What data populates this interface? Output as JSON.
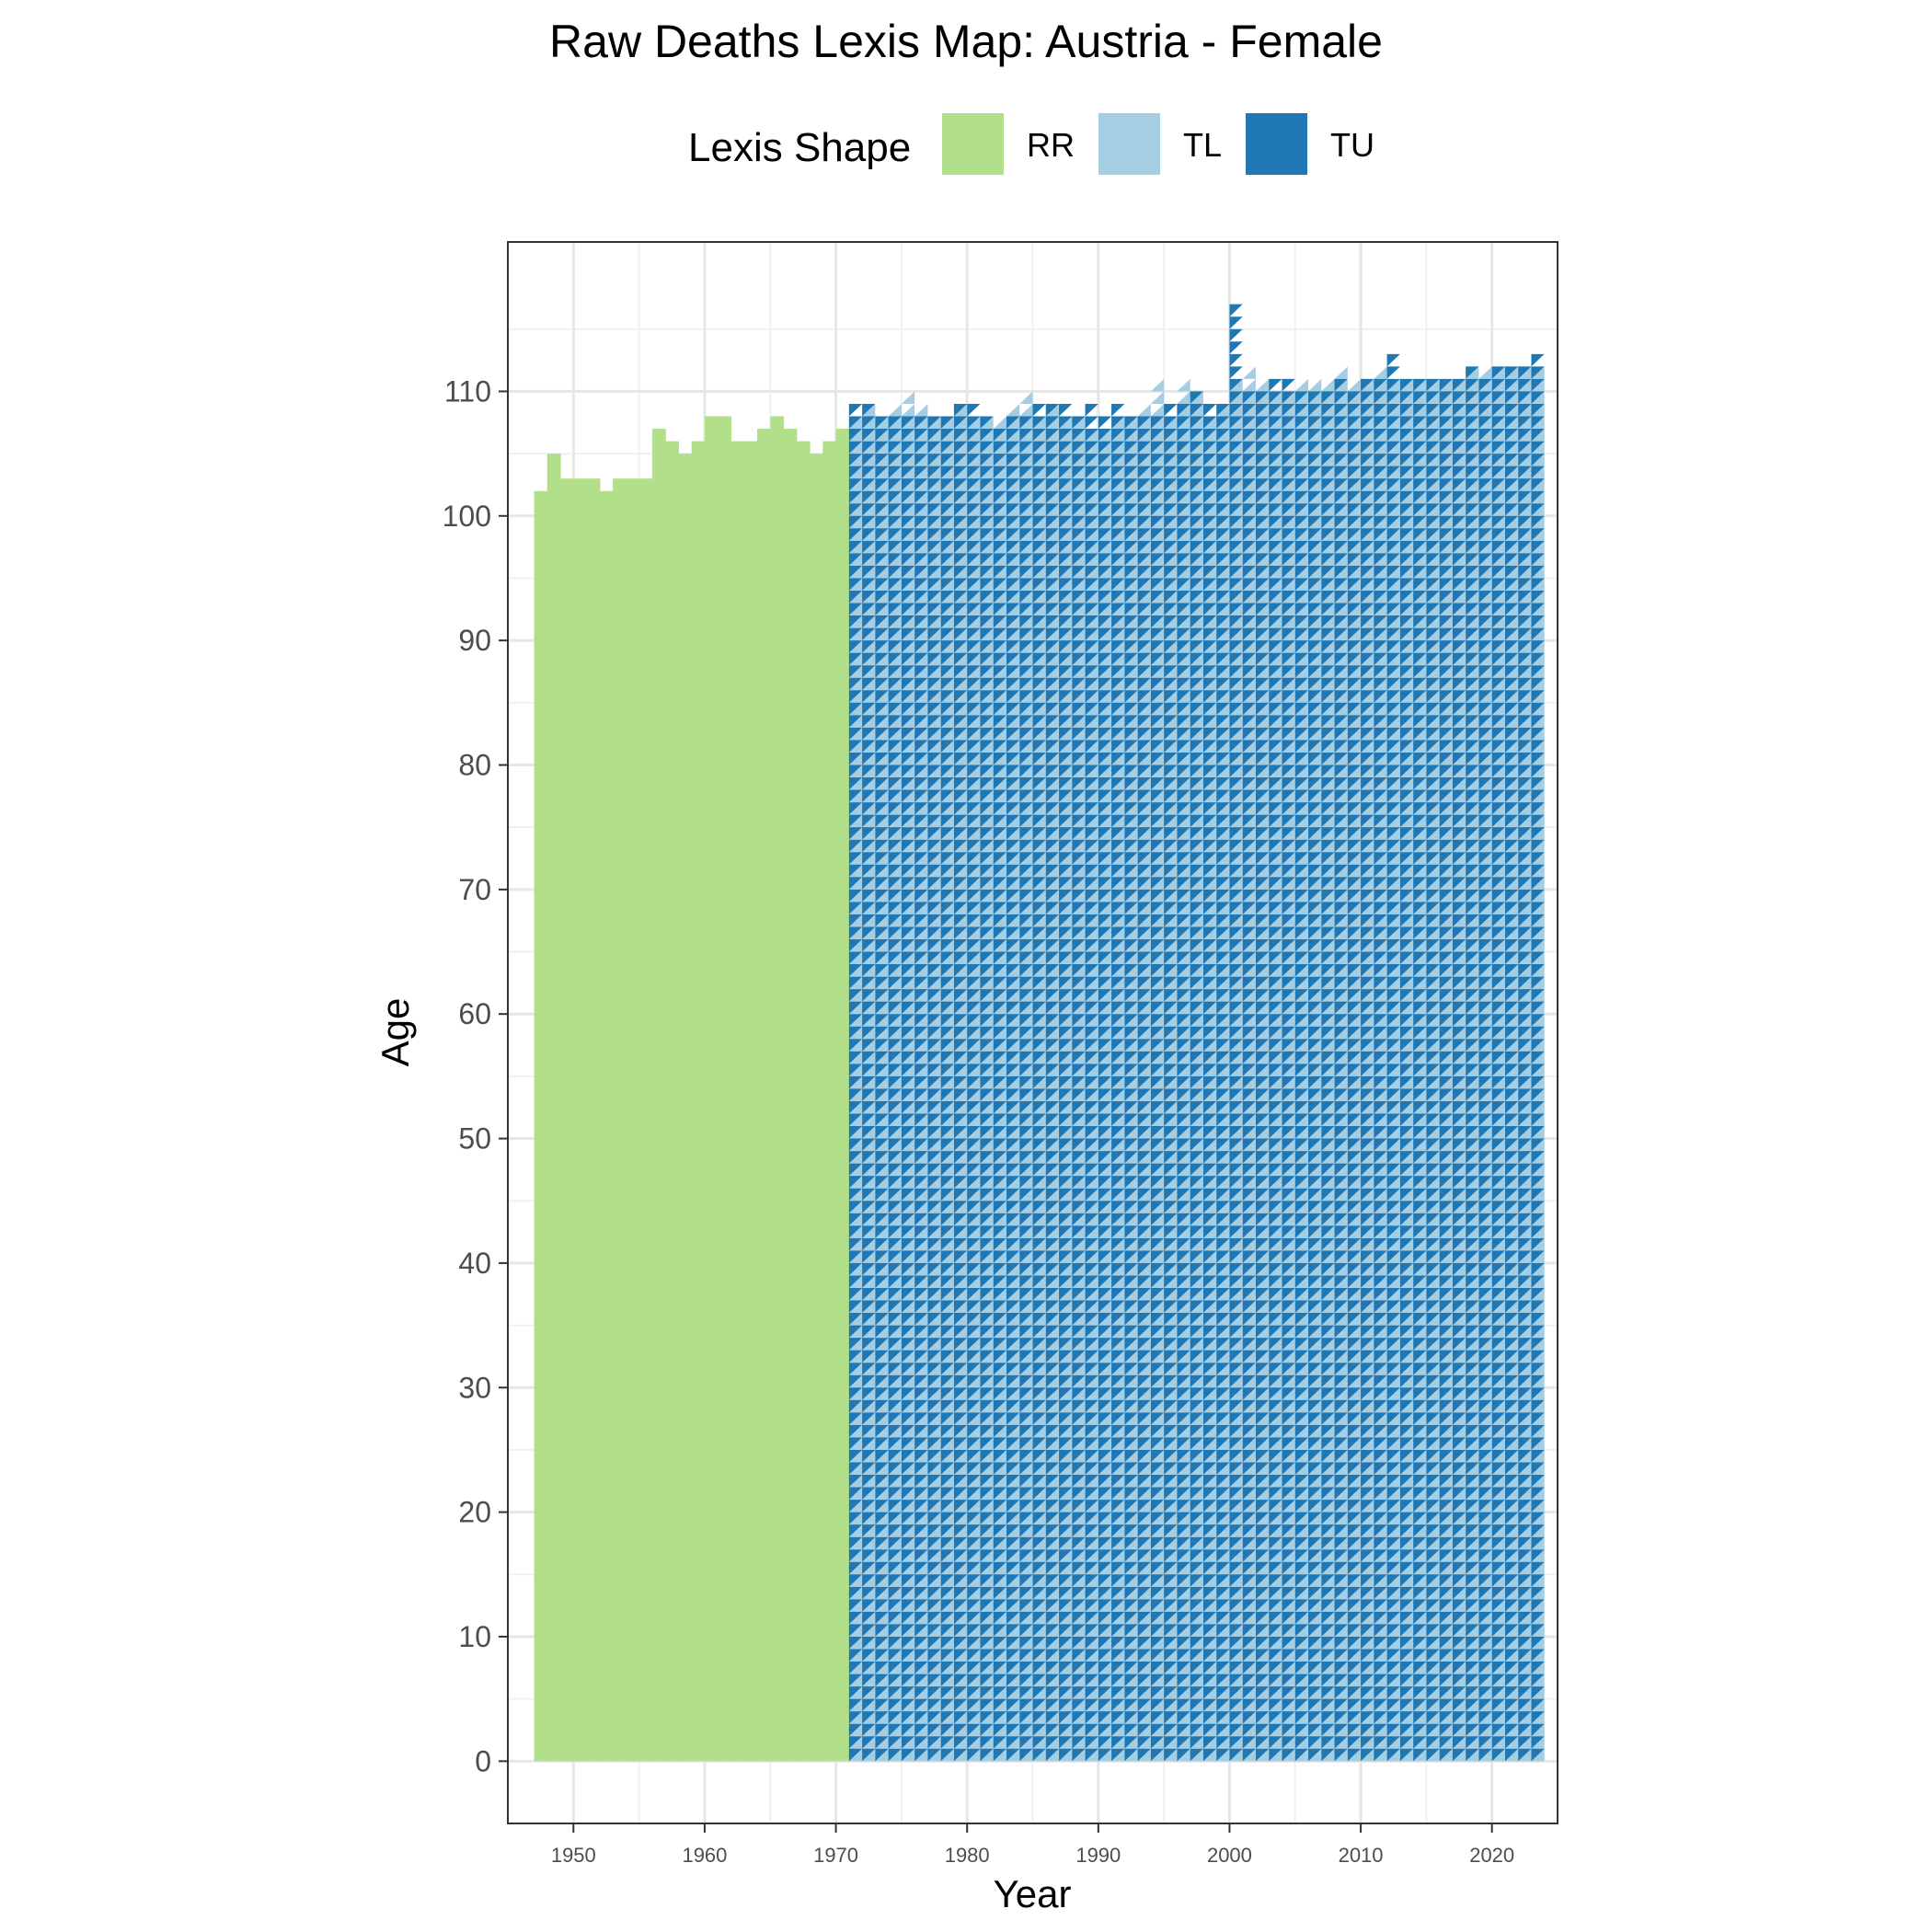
{
  "chart_data": {
    "type": "heatmap",
    "title": "Raw Deaths Lexis Map: Austria - Female",
    "xlabel": "Year",
    "ylabel": "Age",
    "xlim": [
      1945,
      2025
    ],
    "ylim": [
      -5,
      122
    ],
    "x_ticks": [
      1950,
      1960,
      1970,
      1980,
      1990,
      2000,
      2010,
      2020
    ],
    "y_ticks": [
      0,
      10,
      20,
      30,
      40,
      50,
      60,
      70,
      80,
      90,
      100,
      110
    ],
    "grid": true,
    "legend": {
      "title": "Lexis Shape",
      "position": "top",
      "entries": [
        {
          "label": "RR",
          "color": "#b2df8a"
        },
        {
          "label": "TL",
          "color": "#a6cee3"
        },
        {
          "label": "TU",
          "color": "#1f78b4"
        }
      ]
    },
    "series": [
      {
        "name": "RR",
        "color": "#b2df8a",
        "shape": "square",
        "year_range": [
          1947,
          1970
        ],
        "age_min": 0,
        "max_age_by_year": [
          101,
          104,
          102,
          102,
          102,
          101,
          102,
          102,
          102,
          106,
          105,
          104,
          105,
          107,
          107,
          105,
          105,
          106,
          107,
          106,
          105,
          104,
          105,
          106
        ]
      },
      {
        "name": "TL",
        "color": "#a6cee3",
        "shape": "lower-triangle",
        "year_range": [
          1971,
          2023
        ],
        "age_min": 0,
        "max_age_by_year": [
          107,
          108,
          107,
          108,
          109,
          108,
          107,
          107,
          108,
          107,
          107,
          107,
          108,
          109,
          107,
          108,
          107,
          107,
          106,
          106,
          107,
          107,
          108,
          110,
          107,
          110,
          109,
          107,
          108,
          110,
          111,
          110,
          109,
          109,
          110,
          110,
          110,
          111,
          110,
          110,
          111,
          110,
          110,
          110,
          110,
          110,
          110,
          111,
          111,
          111,
          111,
          111,
          111
        ]
      },
      {
        "name": "TU",
        "color": "#1f78b4",
        "shape": "upper-triangle",
        "year_range": [
          1971,
          2023
        ],
        "age_min": 0,
        "max_age_by_year": [
          108,
          108,
          107,
          107,
          107,
          107,
          107,
          107,
          108,
          108,
          107,
          106,
          107,
          107,
          108,
          108,
          108,
          107,
          108,
          107,
          108,
          107,
          107,
          107,
          108,
          108,
          109,
          108,
          108,
          116,
          109,
          109,
          110,
          110,
          109,
          109,
          109,
          110,
          109,
          110,
          110,
          112,
          110,
          110,
          110,
          110,
          110,
          111,
          110,
          111,
          111,
          111,
          112
        ]
      }
    ]
  }
}
